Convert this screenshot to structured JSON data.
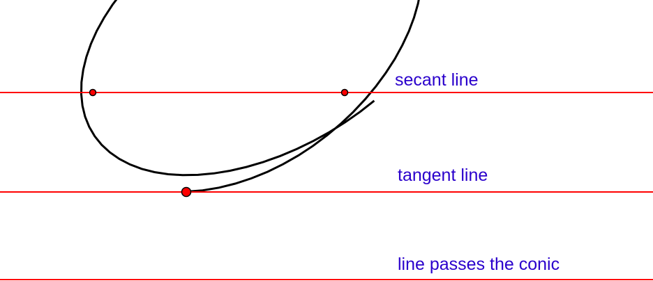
{
  "labels": {
    "secant": "secant line",
    "tangent": "tangent line",
    "passing": "line passes the conic"
  },
  "colors": {
    "background": "#ffffff",
    "line": "#ff0000",
    "conic": "#000000",
    "point_fill": "#ff0000",
    "point_stroke": "#000000",
    "label": "#2a00cc"
  }
}
